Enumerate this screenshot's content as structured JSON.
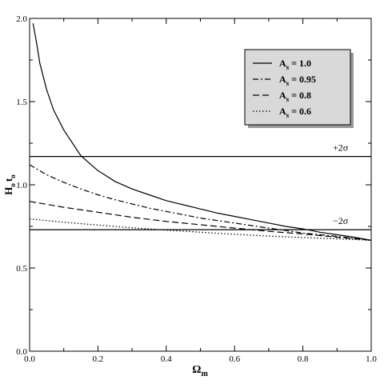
{
  "chart_data": {
    "type": "line",
    "xlabel": "Ω",
    "xlabel_sub": "m",
    "ylabel": "H",
    "ylabel_sub1": "o",
    "ylabel_mid": "t",
    "ylabel_sub2": "o",
    "xlim": [
      0.0,
      1.0
    ],
    "ylim": [
      0.0,
      2.0
    ],
    "x_ticks": [
      "0.0",
      "0.2",
      "0.4",
      "0.6",
      "0.8",
      "1.0"
    ],
    "y_ticks": [
      "0.0",
      "0.5",
      "1.0",
      "1.5",
      "2.0"
    ],
    "grid": false,
    "legend_position": "top-right",
    "series": [
      {
        "label_main": "A",
        "label_sub": "s",
        "label_value": "= 1.0",
        "style": "solid",
        "x": [
          0.01,
          0.02,
          0.03,
          0.05,
          0.07,
          0.1,
          0.15,
          0.2,
          0.25,
          0.3,
          0.35,
          0.4,
          0.45,
          0.5,
          0.55,
          0.6,
          0.65,
          0.7,
          0.75,
          0.8,
          0.85,
          0.9,
          0.95,
          1.0
        ],
        "values": [
          1.97,
          1.86,
          1.73,
          1.57,
          1.45,
          1.33,
          1.175,
          1.085,
          1.02,
          0.975,
          0.94,
          0.905,
          0.88,
          0.855,
          0.83,
          0.81,
          0.79,
          0.77,
          0.75,
          0.735,
          0.715,
          0.7,
          0.685,
          0.667
        ]
      },
      {
        "label_main": "A",
        "label_sub": "s",
        "label_value": "= 0.95",
        "style": "dashdot",
        "x": [
          0.0,
          0.05,
          0.1,
          0.15,
          0.2,
          0.25,
          0.3,
          0.35,
          0.4,
          0.45,
          0.5,
          0.55,
          0.6,
          0.65,
          0.7,
          0.75,
          0.8,
          0.85,
          0.9,
          0.95,
          1.0
        ],
        "values": [
          1.12,
          1.06,
          1.015,
          0.975,
          0.94,
          0.91,
          0.885,
          0.86,
          0.84,
          0.82,
          0.8,
          0.785,
          0.77,
          0.755,
          0.74,
          0.725,
          0.71,
          0.7,
          0.69,
          0.678,
          0.667
        ]
      },
      {
        "label_main": "A",
        "label_sub": "s",
        "label_value": "= 0.8",
        "style": "dashed",
        "x": [
          0.0,
          0.1,
          0.2,
          0.3,
          0.4,
          0.5,
          0.6,
          0.7,
          0.8,
          0.9,
          1.0
        ],
        "values": [
          0.9,
          0.865,
          0.835,
          0.805,
          0.78,
          0.76,
          0.74,
          0.72,
          0.705,
          0.685,
          0.667
        ]
      },
      {
        "label_main": "A",
        "label_sub": "s",
        "label_value": "= 0.6",
        "style": "dotted",
        "x": [
          0.0,
          0.1,
          0.2,
          0.3,
          0.4,
          0.5,
          0.6,
          0.7,
          0.8,
          0.9,
          1.0
        ],
        "values": [
          0.795,
          0.775,
          0.758,
          0.742,
          0.728,
          0.715,
          0.703,
          0.692,
          0.683,
          0.675,
          0.667
        ]
      }
    ],
    "reference_lines": [
      {
        "y": 1.17,
        "label": "+2σ"
      },
      {
        "y": 0.73,
        "label": "−2σ"
      }
    ]
  }
}
